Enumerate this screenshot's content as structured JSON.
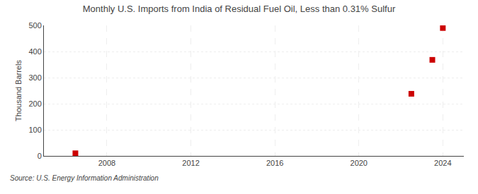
{
  "chart_data": {
    "type": "scatter",
    "title": "Monthly U.S. Imports from India of Residual Fuel Oil, Less than 0.31% Sulfur",
    "ylabel": "Thousand Barrels",
    "annotations": [
      "Source: U.S. Energy Information Administration"
    ],
    "x": [
      2006.5,
      2022.5,
      2023.5,
      2024.0
    ],
    "values": [
      10,
      238,
      368,
      490
    ],
    "color": "#cc0000",
    "marker": "square",
    "xlim": [
      2005.0,
      2025.0
    ],
    "xticks": [
      2008,
      2012,
      2016,
      2020,
      2024
    ],
    "ylim": [
      0,
      500
    ],
    "yticks": [
      0,
      100,
      200,
      300,
      400,
      500
    ],
    "grid": true
  }
}
